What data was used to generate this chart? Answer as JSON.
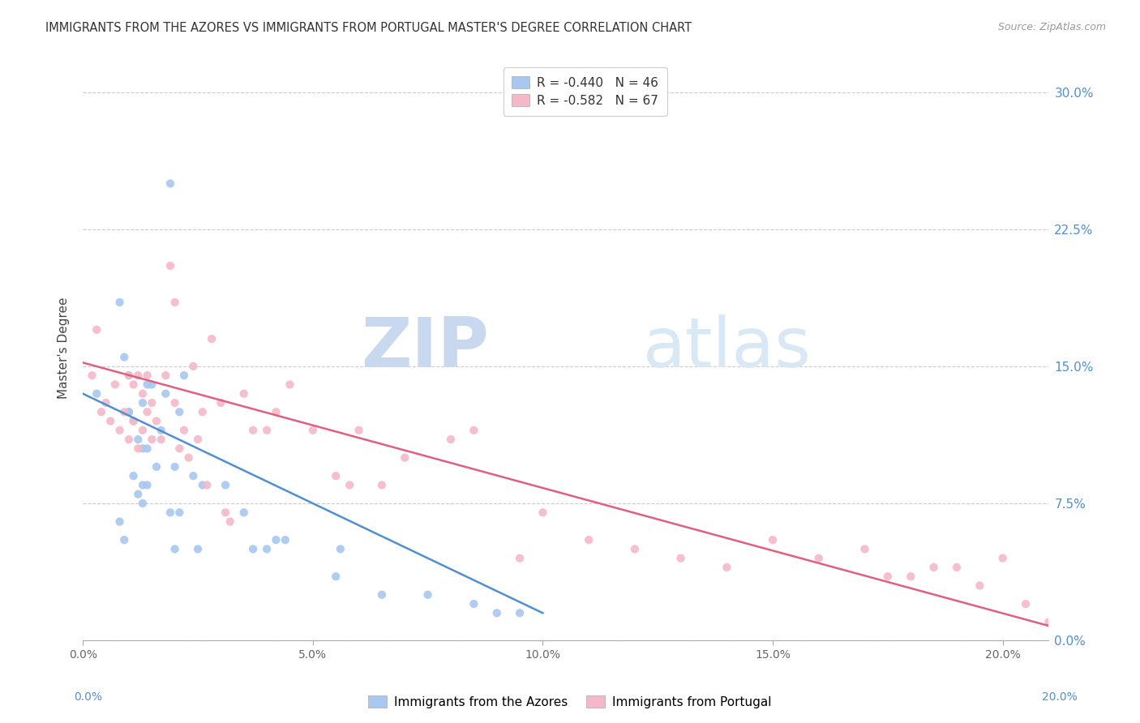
{
  "title": "IMMIGRANTS FROM THE AZORES VS IMMIGRANTS FROM PORTUGAL MASTER'S DEGREE CORRELATION CHART",
  "source": "Source: ZipAtlas.com",
  "ylabel": "Master's Degree",
  "legend1_label": "R = -0.440   N = 46",
  "legend2_label": "R = -0.582   N = 67",
  "legend_bottom_label1": "Immigrants from the Azores",
  "legend_bottom_label2": "Immigrants from Portugal",
  "color_azores": "#a8c8f0",
  "color_portugal": "#f5b8c8",
  "color_azores_line": "#5090d0",
  "color_portugal_line": "#e06080",
  "watermark_zip": "ZIP",
  "watermark_atlas": "atlas",
  "azores_x": [
    0.003,
    0.008,
    0.009,
    0.01,
    0.01,
    0.011,
    0.011,
    0.012,
    0.012,
    0.013,
    0.013,
    0.013,
    0.014,
    0.014,
    0.015,
    0.016,
    0.017,
    0.018,
    0.019,
    0.02,
    0.02,
    0.021,
    0.022,
    0.024,
    0.025,
    0.026,
    0.008,
    0.009,
    0.01,
    0.013,
    0.014,
    0.019,
    0.021,
    0.031,
    0.035,
    0.037,
    0.04,
    0.042,
    0.044,
    0.055,
    0.056,
    0.065,
    0.075,
    0.085,
    0.09,
    0.095
  ],
  "azores_y": [
    0.135,
    0.185,
    0.155,
    0.145,
    0.125,
    0.12,
    0.09,
    0.11,
    0.08,
    0.075,
    0.13,
    0.105,
    0.085,
    0.105,
    0.14,
    0.095,
    0.115,
    0.135,
    0.07,
    0.095,
    0.05,
    0.125,
    0.145,
    0.09,
    0.05,
    0.085,
    0.065,
    0.055,
    0.125,
    0.085,
    0.14,
    0.25,
    0.07,
    0.085,
    0.07,
    0.05,
    0.05,
    0.055,
    0.055,
    0.035,
    0.05,
    0.025,
    0.025,
    0.02,
    0.015,
    0.015
  ],
  "portugal_x": [
    0.002,
    0.003,
    0.004,
    0.005,
    0.006,
    0.007,
    0.008,
    0.009,
    0.01,
    0.01,
    0.011,
    0.011,
    0.012,
    0.012,
    0.013,
    0.013,
    0.014,
    0.014,
    0.015,
    0.015,
    0.016,
    0.017,
    0.018,
    0.019,
    0.02,
    0.02,
    0.021,
    0.022,
    0.023,
    0.024,
    0.025,
    0.026,
    0.027,
    0.028,
    0.03,
    0.031,
    0.032,
    0.035,
    0.037,
    0.04,
    0.042,
    0.045,
    0.05,
    0.055,
    0.058,
    0.06,
    0.065,
    0.07,
    0.08,
    0.085,
    0.095,
    0.1,
    0.11,
    0.12,
    0.13,
    0.14,
    0.15,
    0.16,
    0.17,
    0.175,
    0.18,
    0.185,
    0.19,
    0.195,
    0.2,
    0.205,
    0.21
  ],
  "portugal_y": [
    0.145,
    0.17,
    0.125,
    0.13,
    0.12,
    0.14,
    0.115,
    0.125,
    0.145,
    0.11,
    0.14,
    0.12,
    0.145,
    0.105,
    0.135,
    0.115,
    0.125,
    0.145,
    0.13,
    0.11,
    0.12,
    0.11,
    0.145,
    0.205,
    0.185,
    0.13,
    0.105,
    0.115,
    0.1,
    0.15,
    0.11,
    0.125,
    0.085,
    0.165,
    0.13,
    0.07,
    0.065,
    0.135,
    0.115,
    0.115,
    0.125,
    0.14,
    0.115,
    0.09,
    0.085,
    0.115,
    0.085,
    0.1,
    0.11,
    0.115,
    0.045,
    0.07,
    0.055,
    0.05,
    0.045,
    0.04,
    0.055,
    0.045,
    0.05,
    0.035,
    0.035,
    0.04,
    0.04,
    0.03,
    0.045,
    0.02,
    0.01
  ],
  "azores_line_x": [
    0.0,
    0.1
  ],
  "azores_line_y": [
    0.135,
    0.015
  ],
  "portugal_line_x": [
    0.0,
    0.21
  ],
  "portugal_line_y": [
    0.152,
    0.008
  ],
  "xmin": 0.0,
  "xmax": 0.21,
  "ymin": 0.0,
  "ymax": 0.32,
  "x_tick_vals": [
    0.0,
    0.05,
    0.1,
    0.15,
    0.2
  ],
  "x_tick_labels": [
    "0.0%",
    "5.0%",
    "10.0%",
    "15.0%",
    "20.0%"
  ],
  "y_tick_vals": [
    0.0,
    0.075,
    0.15,
    0.225,
    0.3
  ],
  "y_tick_labels": [
    "0.0%",
    "7.5%",
    "15.0%",
    "22.5%",
    "30.0%"
  ],
  "y_right_tick_labels": [
    "7.5%",
    "15.0%",
    "22.5%",
    "30.0%"
  ]
}
